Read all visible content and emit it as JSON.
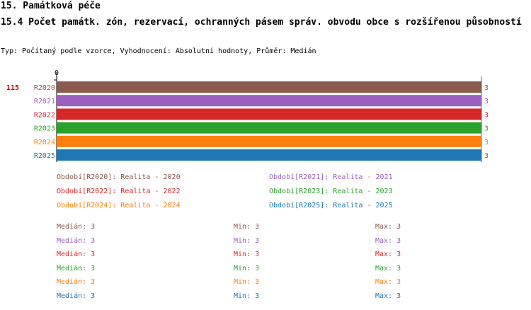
{
  "header": {
    "title": "15. Památková péče",
    "subtitle": "15.4 Počet památk. zón, rezervací, ochranných pásem správ. obvodu obce s rozšířenou působností",
    "meta": "Typ: Počítaný podle vzorce, Vyhodnocení: Absolutní hodnoty, Průměr: Medián"
  },
  "chart_data": {
    "type": "bar",
    "orientation": "horizontal",
    "row_label": "115",
    "axis_zero_label": "0",
    "categories": [
      "R2020",
      "R2021",
      "R2022",
      "R2023",
      "R2024",
      "R2025"
    ],
    "values": [
      3,
      3,
      3,
      3,
      3,
      3
    ],
    "value_labels": [
      "3",
      "3",
      "3",
      "3",
      "3",
      "3"
    ],
    "xlim": [
      0,
      3
    ],
    "colors": [
      "#8b5a4e",
      "#9b5fc0",
      "#d62728",
      "#2ca02c",
      "#ff7f0e",
      "#1f77b4"
    ],
    "legend": [
      "Období[R2020]: Realita - 2020",
      "Období[R2021]: Realita - 2021",
      "Období[R2022]: Realita - 2022",
      "Období[R2023]: Realita - 2023",
      "Období[R2024]: Realita - 2024",
      "Období[R2025]: Realita - 2025"
    ],
    "stats": [
      {
        "median": "Medián: 3",
        "min": "Min: 3",
        "max": "Max: 3"
      },
      {
        "median": "Medián: 3",
        "min": "Min: 3",
        "max": "Max: 3"
      },
      {
        "median": "Medián: 3",
        "min": "Min: 3",
        "max": "Max: 3"
      },
      {
        "median": "Medián: 3",
        "min": "Min: 3",
        "max": "Max: 3"
      },
      {
        "median": "Medián: 3",
        "min": "Min: 3",
        "max": "Max: 3"
      },
      {
        "median": "Medián: 3",
        "min": "Min: 3",
        "max": "Max: 3"
      }
    ]
  }
}
